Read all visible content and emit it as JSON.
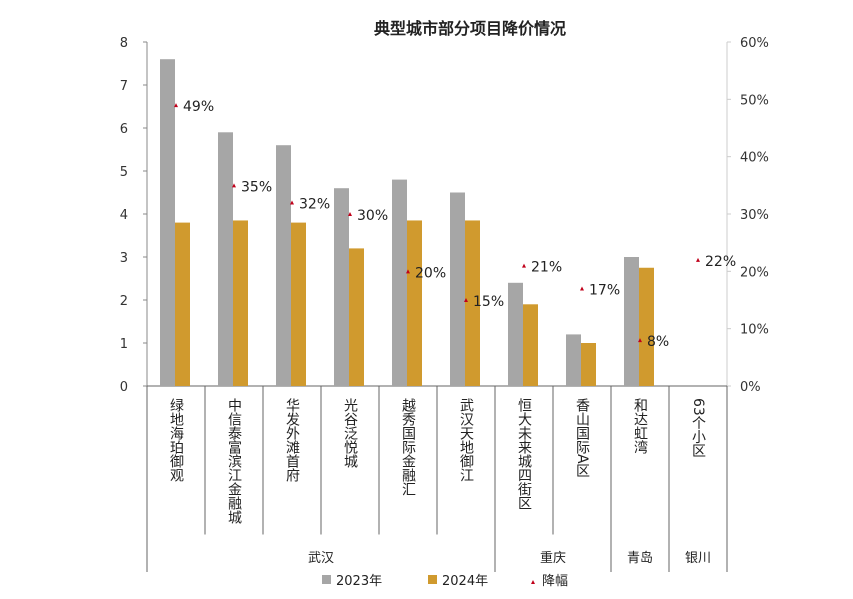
{
  "chart_data": {
    "type": "bar",
    "title": "典型城市部分项目降价情况",
    "categories": [
      "绿地海珀御观",
      "中信泰富滨江金融城",
      "华发外滩首府",
      "光谷泛悦城",
      "越秀国际金融汇",
      "武汉天地御江",
      "恒大未来城四街区",
      "香山国际A区",
      "和达虹湾",
      "63个小区"
    ],
    "groups": [
      {
        "name": "武汉",
        "count": 6
      },
      {
        "name": "重庆",
        "count": 2
      },
      {
        "name": "青岛",
        "count": 1
      },
      {
        "name": "银川",
        "count": 1
      }
    ],
    "series": [
      {
        "name": "2023年",
        "type": "bar",
        "axis": "left",
        "color": "#a6a6a6",
        "values": [
          7.6,
          5.9,
          5.6,
          4.6,
          4.8,
          4.5,
          2.4,
          1.2,
          3.0,
          null
        ]
      },
      {
        "name": "2024年",
        "type": "bar",
        "axis": "left",
        "color": "#d09a2e",
        "values": [
          3.8,
          3.85,
          3.8,
          3.2,
          3.85,
          3.85,
          1.9,
          1.0,
          2.75,
          null
        ]
      },
      {
        "name": "降幅",
        "type": "scatter",
        "axis": "right",
        "color": "#c0001a",
        "marker": "triangle",
        "values": [
          49,
          35,
          32,
          30,
          20,
          15,
          21,
          17,
          8,
          22
        ],
        "labels": [
          "49%",
          "35%",
          "32%",
          "30%",
          "20%",
          "15%",
          "21%",
          "17%",
          "8%",
          "22%"
        ]
      }
    ],
    "left_axis": {
      "ylim": [
        0,
        8
      ],
      "ticks": [
        "0",
        "1",
        "2",
        "3",
        "4",
        "5",
        "6",
        "7",
        "8"
      ]
    },
    "right_axis": {
      "ylim": [
        0,
        60
      ],
      "ticks": [
        "0%",
        "10%",
        "20%",
        "30%",
        "40%",
        "50%",
        "60%"
      ]
    },
    "grid": false,
    "legend": "bottom"
  }
}
